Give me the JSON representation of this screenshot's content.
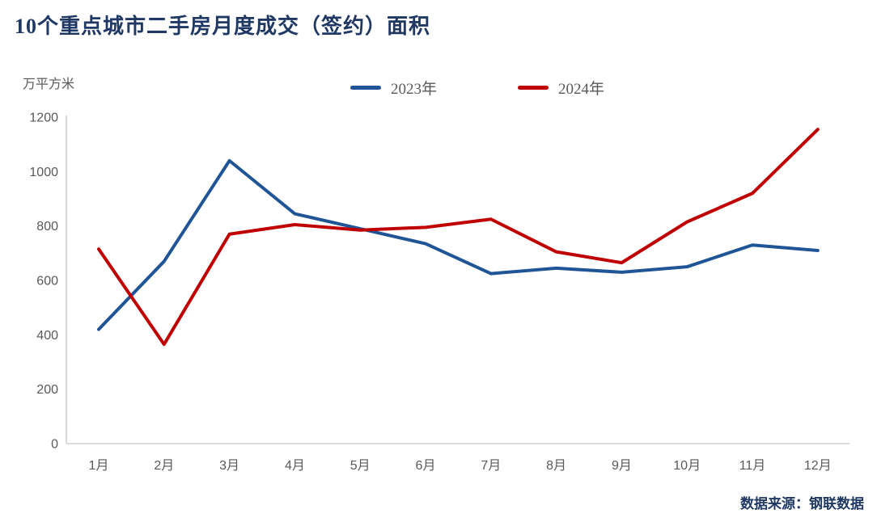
{
  "header": {
    "title": "10个重点城市二手房月度成交（签约）面积"
  },
  "chart": {
    "unit_label": "万平方米"
  },
  "legend": {
    "items": [
      {
        "label": "2023年",
        "color": "#1f5597"
      },
      {
        "label": "2024年",
        "color": "#c00000"
      }
    ]
  },
  "chart_data": {
    "type": "line",
    "title": "10个重点城市二手房月度成交（签约）面积",
    "ylabel": "万平方米",
    "xlabel": "",
    "categories": [
      "1月",
      "2月",
      "3月",
      "4月",
      "5月",
      "6月",
      "7月",
      "8月",
      "9月",
      "10月",
      "11月",
      "12月"
    ],
    "series": [
      {
        "name": "2023年",
        "color": "#1f5597",
        "values": [
          420,
          670,
          1040,
          845,
          790,
          735,
          625,
          645,
          630,
          650,
          730,
          710
        ]
      },
      {
        "name": "2024年",
        "color": "#c00000",
        "values": [
          715,
          365,
          770,
          805,
          785,
          795,
          825,
          705,
          665,
          815,
          920,
          1155
        ]
      }
    ],
    "ylim": [
      0,
      1200
    ],
    "y_ticks": [
      0,
      200,
      400,
      600,
      800,
      1000,
      1200
    ],
    "grid": false,
    "legend_position": "top"
  },
  "footer": {
    "source": "数据来源：钢联数据"
  },
  "colors": {
    "title_text": "#1f3864",
    "axis_text": "#595959",
    "axis_line": "#cfcfcf",
    "background": "#ffffff"
  }
}
